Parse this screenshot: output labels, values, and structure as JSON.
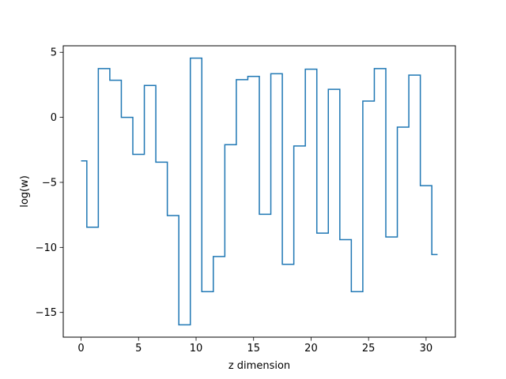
{
  "chart_data": {
    "type": "line",
    "style": "step-mid",
    "title": "",
    "xlabel": "z dimension",
    "ylabel": "log(w)",
    "xlim": [
      -1.55,
      32.55
    ],
    "ylim": [
      -16.9,
      5.5
    ],
    "xticks": [
      0,
      5,
      10,
      15,
      20,
      25,
      30
    ],
    "yticks": [
      5,
      0,
      -5,
      -10,
      -15
    ],
    "ytick_labels": [
      "5",
      "0",
      "−5",
      "−10",
      "−15"
    ],
    "grid": false,
    "legend": "none",
    "series": [
      {
        "color": "#1f77b4",
        "x": [
          0,
          1,
          2,
          3,
          4,
          5,
          6,
          7,
          8,
          9,
          10,
          11,
          12,
          13,
          14,
          15,
          16,
          17,
          18,
          19,
          20,
          21,
          22,
          23,
          24,
          25,
          26,
          27,
          28,
          29,
          30,
          31
        ],
        "y": [
          -3.35,
          -8.45,
          3.75,
          2.85,
          0.0,
          -2.85,
          2.45,
          -3.45,
          -7.55,
          -15.95,
          4.55,
          -13.4,
          -10.7,
          -2.1,
          2.9,
          3.15,
          -7.45,
          3.35,
          -11.3,
          -2.2,
          3.7,
          -8.9,
          2.15,
          -9.4,
          -13.4,
          1.25,
          3.75,
          -9.2,
          -0.75,
          3.25,
          -5.25,
          -10.55
        ]
      }
    ]
  }
}
